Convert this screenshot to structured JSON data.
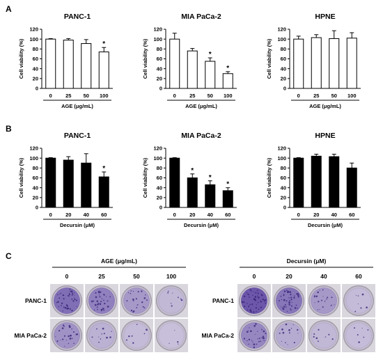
{
  "panels": {
    "A": {
      "label": "A"
    },
    "B": {
      "label": "B"
    },
    "C": {
      "label": "C"
    }
  },
  "chart_data": [
    {
      "type": "bar",
      "panel": "A",
      "title": "PANC-1",
      "categories": [
        "0",
        "25",
        "50",
        "100"
      ],
      "values": [
        100,
        98,
        91,
        74
      ],
      "errors": [
        1,
        3,
        8,
        9
      ],
      "significant": [
        false,
        false,
        false,
        true
      ],
      "ylabel": "Cell viability (%)",
      "xlabel": "AGE (μg/mL)",
      "ylim": [
        0,
        120
      ],
      "yticks": [
        0,
        20,
        40,
        60,
        80,
        100,
        120
      ],
      "bar_color": "#ffffff",
      "marker": "*"
    },
    {
      "type": "bar",
      "panel": "A",
      "title": "MIA PaCa-2",
      "categories": [
        "0",
        "25",
        "50",
        "100"
      ],
      "values": [
        100,
        76,
        55,
        30
      ],
      "errors": [
        12,
        5,
        7,
        4
      ],
      "significant": [
        false,
        false,
        true,
        true
      ],
      "ylabel": "Cell viability (%)",
      "xlabel": "AGE (μg/mL)",
      "ylim": [
        0,
        120
      ],
      "yticks": [
        0,
        20,
        40,
        60,
        80,
        100,
        120
      ],
      "bar_color": "#ffffff",
      "marker": "*"
    },
    {
      "type": "bar",
      "panel": "A",
      "title": "HPNE",
      "categories": [
        "0",
        "25",
        "50",
        "100"
      ],
      "values": [
        100,
        103,
        101,
        102
      ],
      "errors": [
        6,
        6,
        16,
        11
      ],
      "significant": [
        false,
        false,
        false,
        false
      ],
      "ylabel": "Cell viability (%)",
      "xlabel": "AGE (μg/mL)",
      "ylim": [
        0,
        120
      ],
      "yticks": [
        0,
        20,
        40,
        60,
        80,
        100,
        120
      ],
      "bar_color": "#ffffff",
      "marker": "*"
    },
    {
      "type": "bar",
      "panel": "B",
      "title": "PANC-1",
      "categories": [
        "0",
        "20",
        "40",
        "60"
      ],
      "values": [
        100,
        96,
        90,
        62
      ],
      "errors": [
        1,
        7,
        19,
        10
      ],
      "significant": [
        false,
        false,
        false,
        true
      ],
      "ylabel": "Cell viability (%)",
      "xlabel": "Decursin (μM)",
      "ylim": [
        0,
        120
      ],
      "yticks": [
        0,
        20,
        40,
        60,
        80,
        100,
        120
      ],
      "bar_color": "#000000",
      "marker": "*"
    },
    {
      "type": "bar",
      "panel": "B",
      "title": "MIA PaCa-2",
      "categories": [
        "0",
        "20",
        "40",
        "60"
      ],
      "values": [
        100,
        60,
        46,
        34
      ],
      "errors": [
        1,
        8,
        8,
        6
      ],
      "significant": [
        false,
        true,
        true,
        true
      ],
      "ylabel": "Cell viability (%)",
      "xlabel": "Decursin (μM)",
      "ylim": [
        0,
        120
      ],
      "yticks": [
        0,
        20,
        40,
        60,
        80,
        100,
        120
      ],
      "bar_color": "#000000",
      "marker": "*"
    },
    {
      "type": "bar",
      "panel": "B",
      "title": "HPNE",
      "categories": [
        "0",
        "20",
        "40",
        "60"
      ],
      "values": [
        100,
        104,
        103,
        80
      ],
      "errors": [
        1,
        4,
        5,
        10
      ],
      "significant": [
        false,
        false,
        false,
        false
      ],
      "ylabel": "Cell viability (%)",
      "xlabel": "Decursin (μM)",
      "ylim": [
        0,
        120
      ],
      "yticks": [
        0,
        20,
        40,
        60,
        80,
        100,
        120
      ],
      "bar_color": "#000000",
      "marker": "*"
    }
  ],
  "colony": {
    "age": {
      "header": "AGE (μg/mL)",
      "doses": [
        "0",
        "25",
        "50",
        "100"
      ],
      "rows": [
        "PANC-1",
        "MIA PaCa-2"
      ],
      "density": [
        [
          0.75,
          0.6,
          0.4,
          0.15
        ],
        [
          0.45,
          0.2,
          0.12,
          0.08
        ]
      ]
    },
    "decursin": {
      "header": "Decursin (μM)",
      "doses": [
        "0",
        "20",
        "40",
        "60"
      ],
      "rows": [
        "PANC-1",
        "MIA PaCa-2"
      ],
      "density": [
        [
          0.95,
          0.7,
          0.4,
          0.12
        ],
        [
          0.55,
          0.25,
          0.15,
          0.1
        ]
      ]
    }
  }
}
